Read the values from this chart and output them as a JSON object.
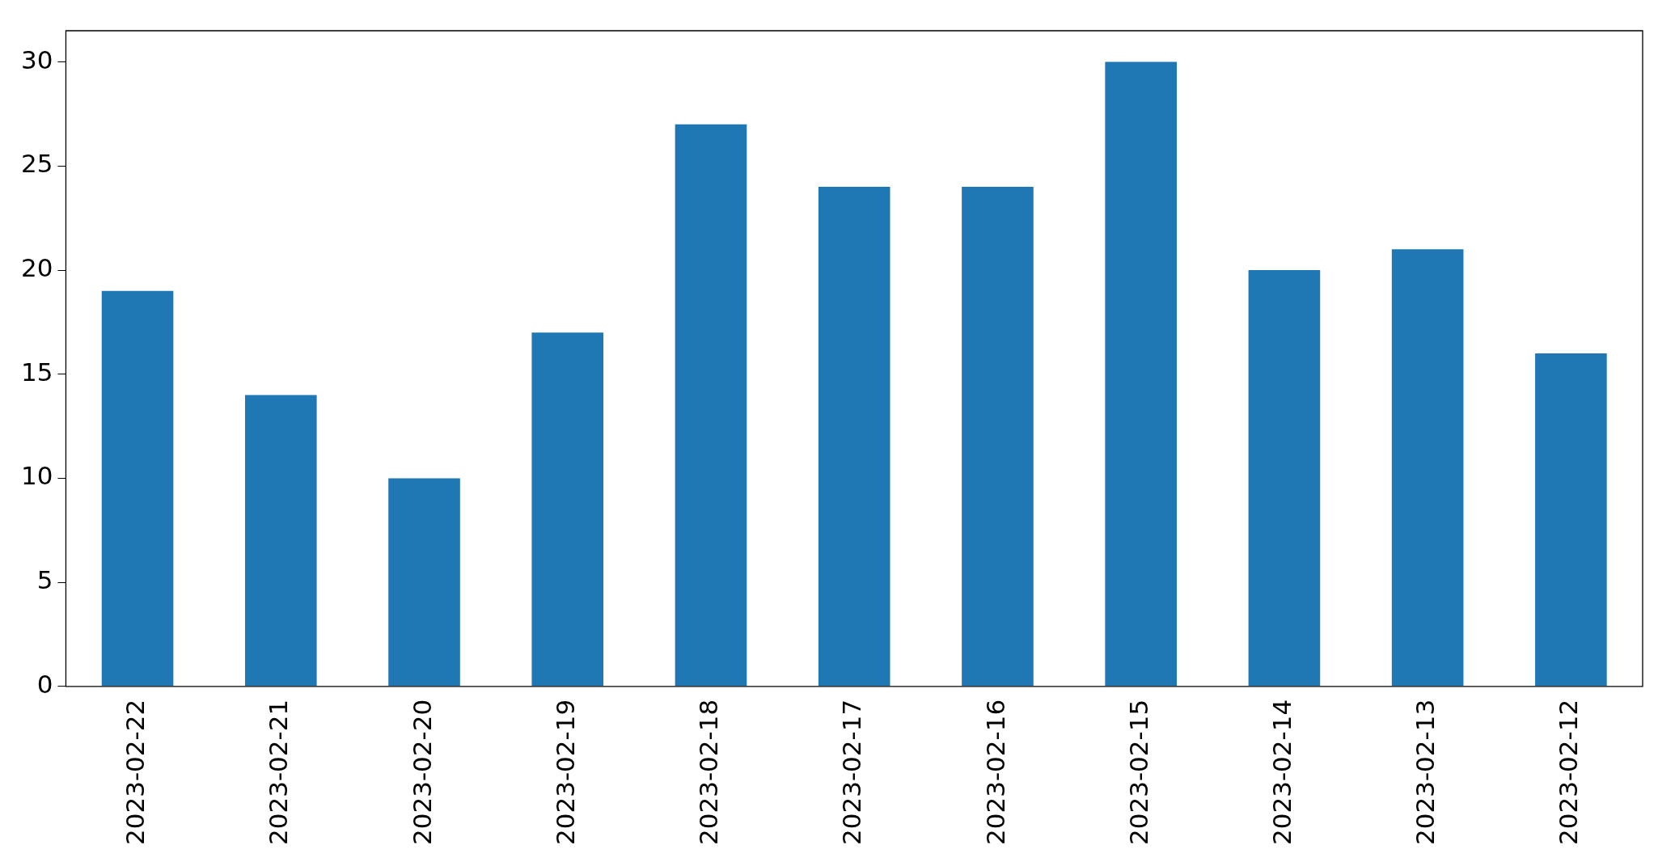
{
  "chart_data": {
    "type": "bar",
    "categories": [
      "2023-02-22",
      "2023-02-21",
      "2023-02-20",
      "2023-02-19",
      "2023-02-18",
      "2023-02-17",
      "2023-02-16",
      "2023-02-15",
      "2023-02-14",
      "2023-02-13",
      "2023-02-12"
    ],
    "values": [
      19,
      14,
      10,
      17,
      27,
      24,
      24,
      30,
      20,
      21,
      16
    ],
    "color": "#1f77b4",
    "ylim": [
      0,
      31.5
    ],
    "yticks": [
      0,
      5,
      10,
      15,
      20,
      25,
      30
    ],
    "grid": false,
    "legend": false
  }
}
